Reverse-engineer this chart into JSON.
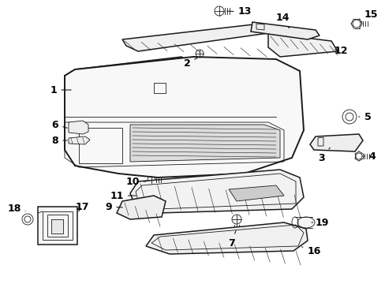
{
  "bg_color": "#ffffff",
  "line_color": "#1a1a1a",
  "text_color": "#000000",
  "fig_width": 4.89,
  "fig_height": 3.6,
  "dpi": 100,
  "label_fs": 9,
  "lw_main": 1.1,
  "lw_thin": 0.6,
  "lw_hatch": 0.4
}
